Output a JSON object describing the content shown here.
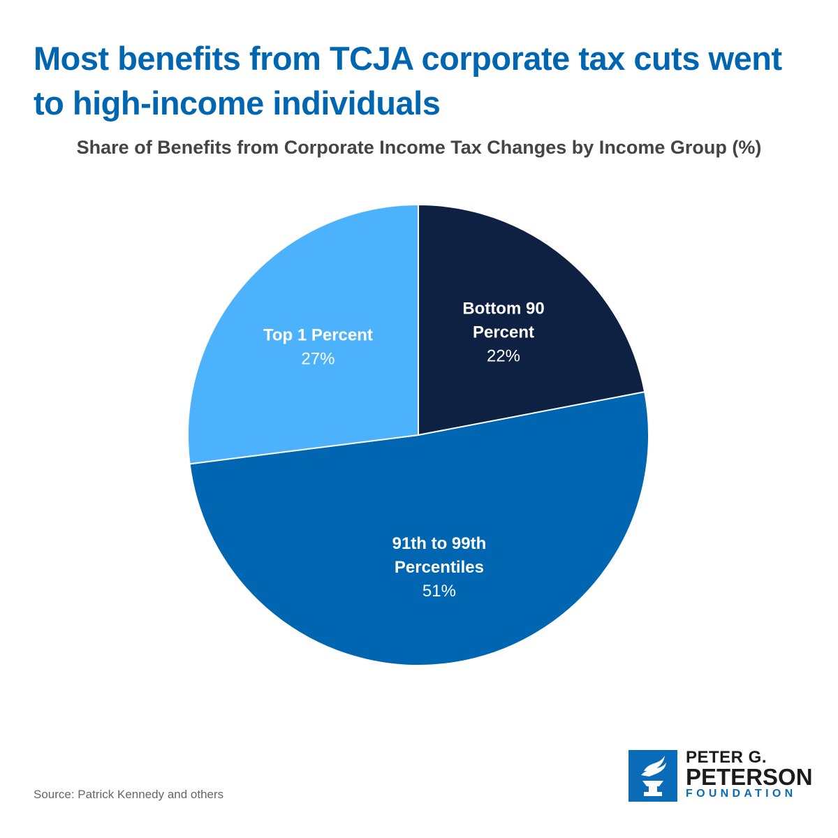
{
  "headline": "Most benefits from TCJA corporate tax cuts went to high-income individuals",
  "chart_data": {
    "type": "pie",
    "title": "Share of Benefits from Corporate Income Tax Changes by Income Group (%)",
    "slices": [
      {
        "label_lines": [
          "Bottom 90",
          "Percent"
        ],
        "value": 22,
        "value_label": "22%",
        "color": "#0e2142"
      },
      {
        "label_lines": [
          "91th to 99th",
          "Percentiles"
        ],
        "value": 51,
        "value_label": "51%",
        "color": "#0066b2"
      },
      {
        "label_lines": [
          "Top 1 Percent"
        ],
        "value": 27,
        "value_label": "27%",
        "color": "#4db2fc"
      }
    ],
    "start": "12 o'clock",
    "direction": "clockwise",
    "legend": "none"
  },
  "source": "Source: Patrick Kennedy and others",
  "logo": {
    "line1": "PETER G.",
    "line2": "PETERSON",
    "line3": "FOUNDATION",
    "icon": "torch-icon",
    "color": "#0a6bb8"
  }
}
